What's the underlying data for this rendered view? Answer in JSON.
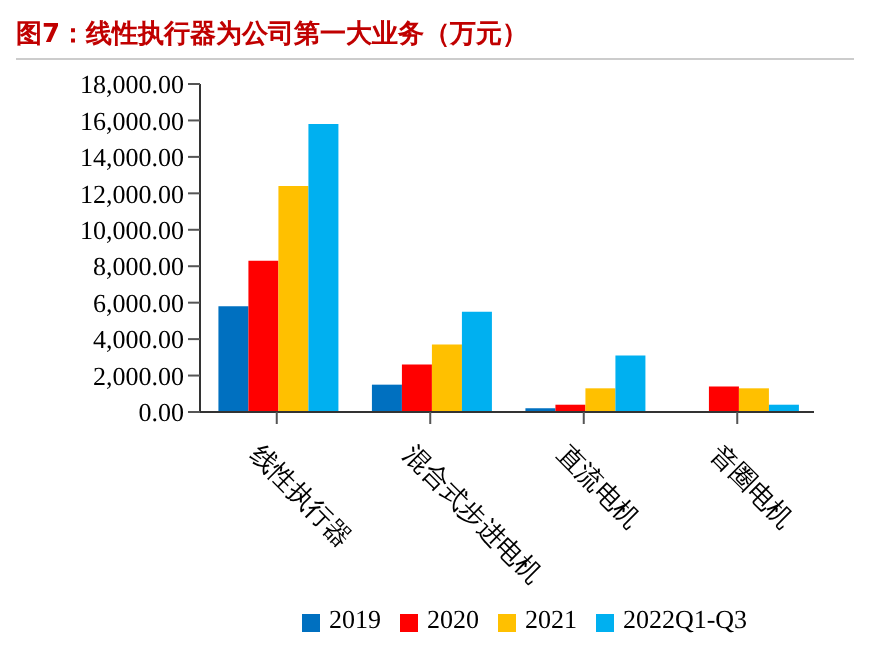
{
  "chart_data": {
    "type": "bar",
    "title": "图7：线性执行器为公司第一大业务（万元）",
    "categories": [
      "线性执行器",
      "混合式步进电机",
      "直流电机",
      "音圈电机"
    ],
    "series": [
      {
        "name": "2019",
        "color": "#0070c0",
        "values": [
          5800,
          1500,
          200,
          0
        ]
      },
      {
        "name": "2020",
        "color": "#ff0000",
        "values": [
          8300,
          2600,
          400,
          1400
        ]
      },
      {
        "name": "2021",
        "color": "#ffc000",
        "values": [
          12400,
          3700,
          1300,
          1300
        ]
      },
      {
        "name": "2022Q1-Q3",
        "color": "#00b0f0",
        "values": [
          15800,
          5500,
          3100,
          400
        ]
      }
    ],
    "ylim": [
      0,
      18000
    ],
    "yticks": [
      {
        "value": 0,
        "label": "0.00"
      },
      {
        "value": 2000,
        "label": "2,000.00"
      },
      {
        "value": 4000,
        "label": "4,000.00"
      },
      {
        "value": 6000,
        "label": "6,000.00"
      },
      {
        "value": 8000,
        "label": "8,000.00"
      },
      {
        "value": 10000,
        "label": "10,000.00"
      },
      {
        "value": 12000,
        "label": "12,000.00"
      },
      {
        "value": 14000,
        "label": "14,000.00"
      },
      {
        "value": 16000,
        "label": "16,000.00"
      },
      {
        "value": 18000,
        "label": "18,000.00"
      }
    ],
    "grid": false,
    "legend": "bottom"
  }
}
